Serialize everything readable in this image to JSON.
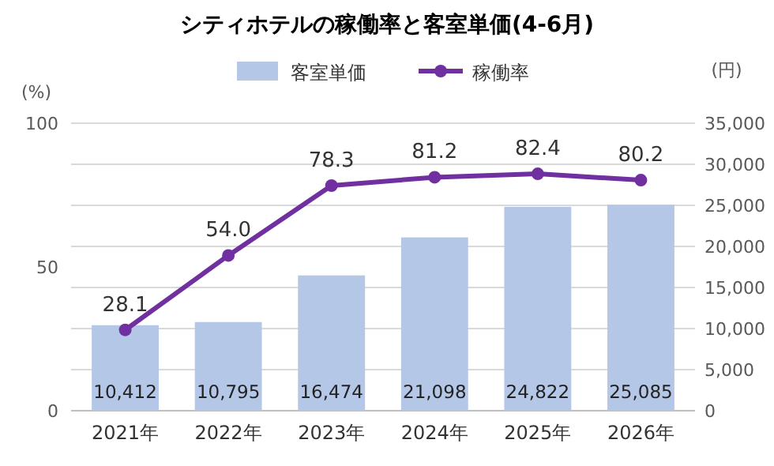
{
  "chart_data": {
    "type": "bar",
    "title": "シティホテルの稼働率と客室単価(4-6月)",
    "ylabel": "(%)",
    "y2label": "(円)",
    "categories": [
      "2021年",
      "2022年",
      "2023年",
      "2024年",
      "2025年",
      "2026年"
    ],
    "series": [
      {
        "name": "客室単価",
        "axis": "y2",
        "color": "#b4c7e7",
        "values": [
          10412,
          10795,
          16474,
          21098,
          24822,
          25085
        ],
        "value_labels": [
          "10,412",
          "10,795",
          "16,474",
          "21,098",
          "24,822",
          "25,085"
        ]
      },
      {
        "name": "稼働率",
        "type": "line",
        "axis": "y",
        "color": "#7030a0",
        "values": [
          28.1,
          54.0,
          78.3,
          81.2,
          82.4,
          80.2
        ],
        "value_labels": [
          "28.1",
          "54.0",
          "78.3",
          "81.2",
          "82.4",
          "80.2"
        ]
      }
    ],
    "ylim": [
      0,
      100
    ],
    "yticks": [
      0,
      50,
      100
    ],
    "y2lim": [
      0,
      35000
    ],
    "y2ticks": [
      {
        "value": 0,
        "label": "0"
      },
      {
        "value": 5000,
        "label": "5,000"
      },
      {
        "value": 10000,
        "label": "10,000"
      },
      {
        "value": 15000,
        "label": "15,000"
      },
      {
        "value": 20000,
        "label": "20,000"
      },
      {
        "value": 25000,
        "label": "25,000"
      },
      {
        "value": 30000,
        "label": "30,000"
      },
      {
        "value": 35000,
        "label": "35,000"
      }
    ],
    "grid": "y2",
    "legend": "top",
    "marker": "circle"
  }
}
